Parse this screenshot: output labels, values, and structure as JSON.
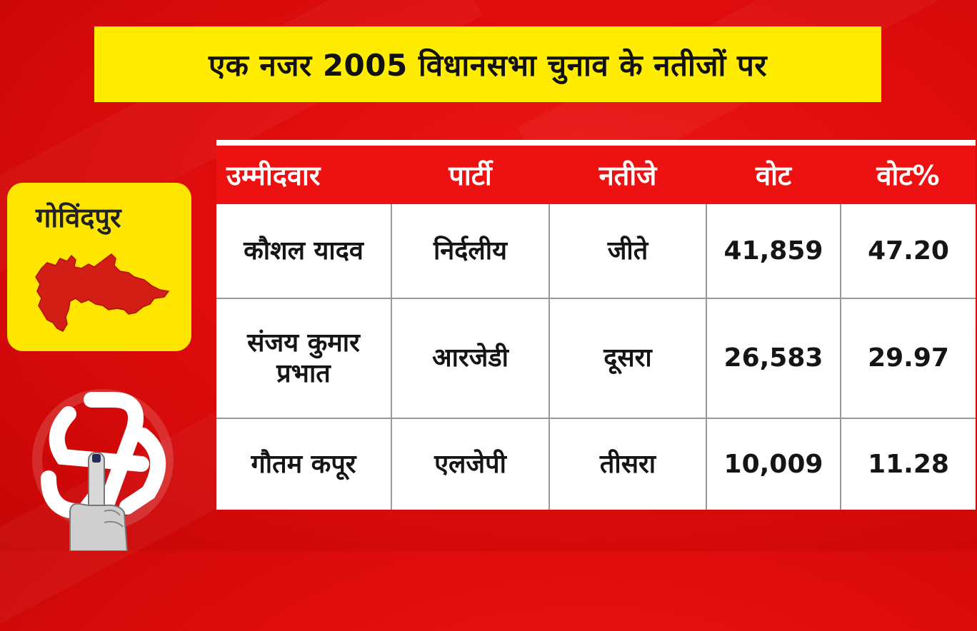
{
  "title": "एक नजर 2005 विधानसभा चुनाव के नतीजों पर",
  "region": {
    "name": "गोविंदपुर",
    "map_icon": "region-map-icon",
    "card_color": "#ffe600"
  },
  "table": {
    "headers": [
      "उम्मीदवार",
      "पार्टी",
      "नतीजे",
      "वोट",
      "वोट%"
    ],
    "rows": [
      {
        "candidate": "कौशल यादव",
        "party": "निर्दलीय",
        "result": "जीते",
        "votes": "41,859",
        "vote_pct": "47.20"
      },
      {
        "candidate": "संजय कुमार प्रभात",
        "party": "आरजेडी",
        "result": "दूसरा",
        "votes": "26,583",
        "vote_pct": "29.97"
      },
      {
        "candidate": "गौतम कपूर",
        "party": "एलजेपी",
        "result": "तीसरा",
        "votes": "10,009",
        "vote_pct": "11.28"
      }
    ]
  },
  "colors": {
    "background": "#e00c0c",
    "banner": "#ffec00",
    "header": "#ee1111"
  },
  "icons": {
    "emblem": "election-swastika-finger-icon"
  }
}
